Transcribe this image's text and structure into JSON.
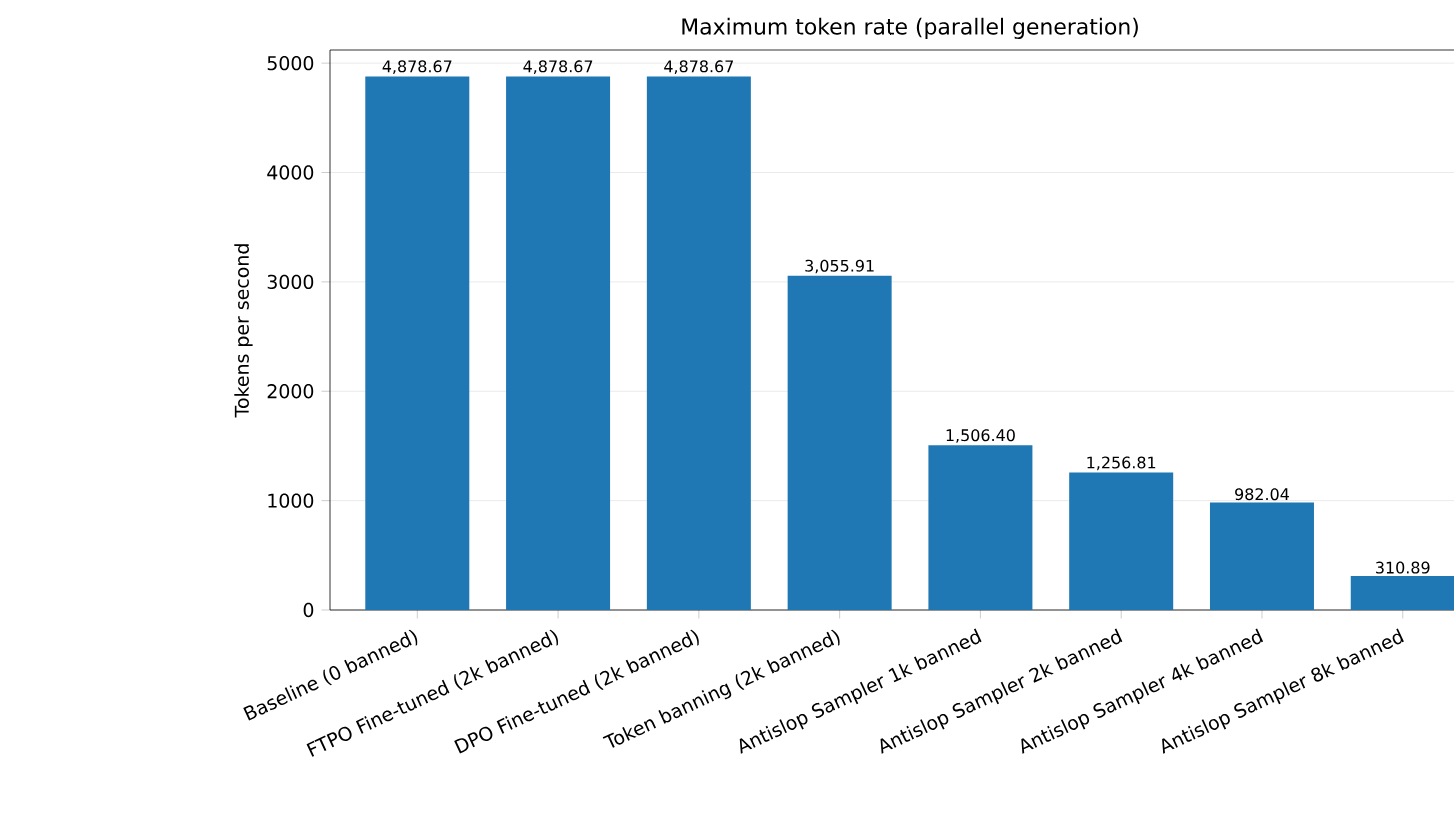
{
  "chart_data": {
    "type": "bar",
    "title": "Maximum token rate (parallel generation)",
    "ylabel": "Tokens per second",
    "categories": [
      "Baseline (0 banned)",
      "FTPO Fine-tuned (2k banned)",
      "DPO Fine-tuned (2k banned)",
      "Token banning (2k banned)",
      "Antislop Sampler 1k banned",
      "Antislop Sampler 2k banned",
      "Antislop Sampler 4k banned",
      "Antislop Sampler 8k banned"
    ],
    "values": [
      4878.67,
      4878.67,
      4878.67,
      3055.91,
      1506.4,
      1256.81,
      982.04,
      310.89
    ],
    "value_labels": [
      "4,878.67",
      "4,878.67",
      "4,878.67",
      "3,055.91",
      "1,506.40",
      "1,256.81",
      "982.04",
      "310.89"
    ],
    "color": "#1f77b4",
    "ylim": [
      0,
      5120
    ],
    "yticks": [
      0,
      1000,
      2000,
      3000,
      4000,
      5000
    ],
    "grid": "y"
  }
}
